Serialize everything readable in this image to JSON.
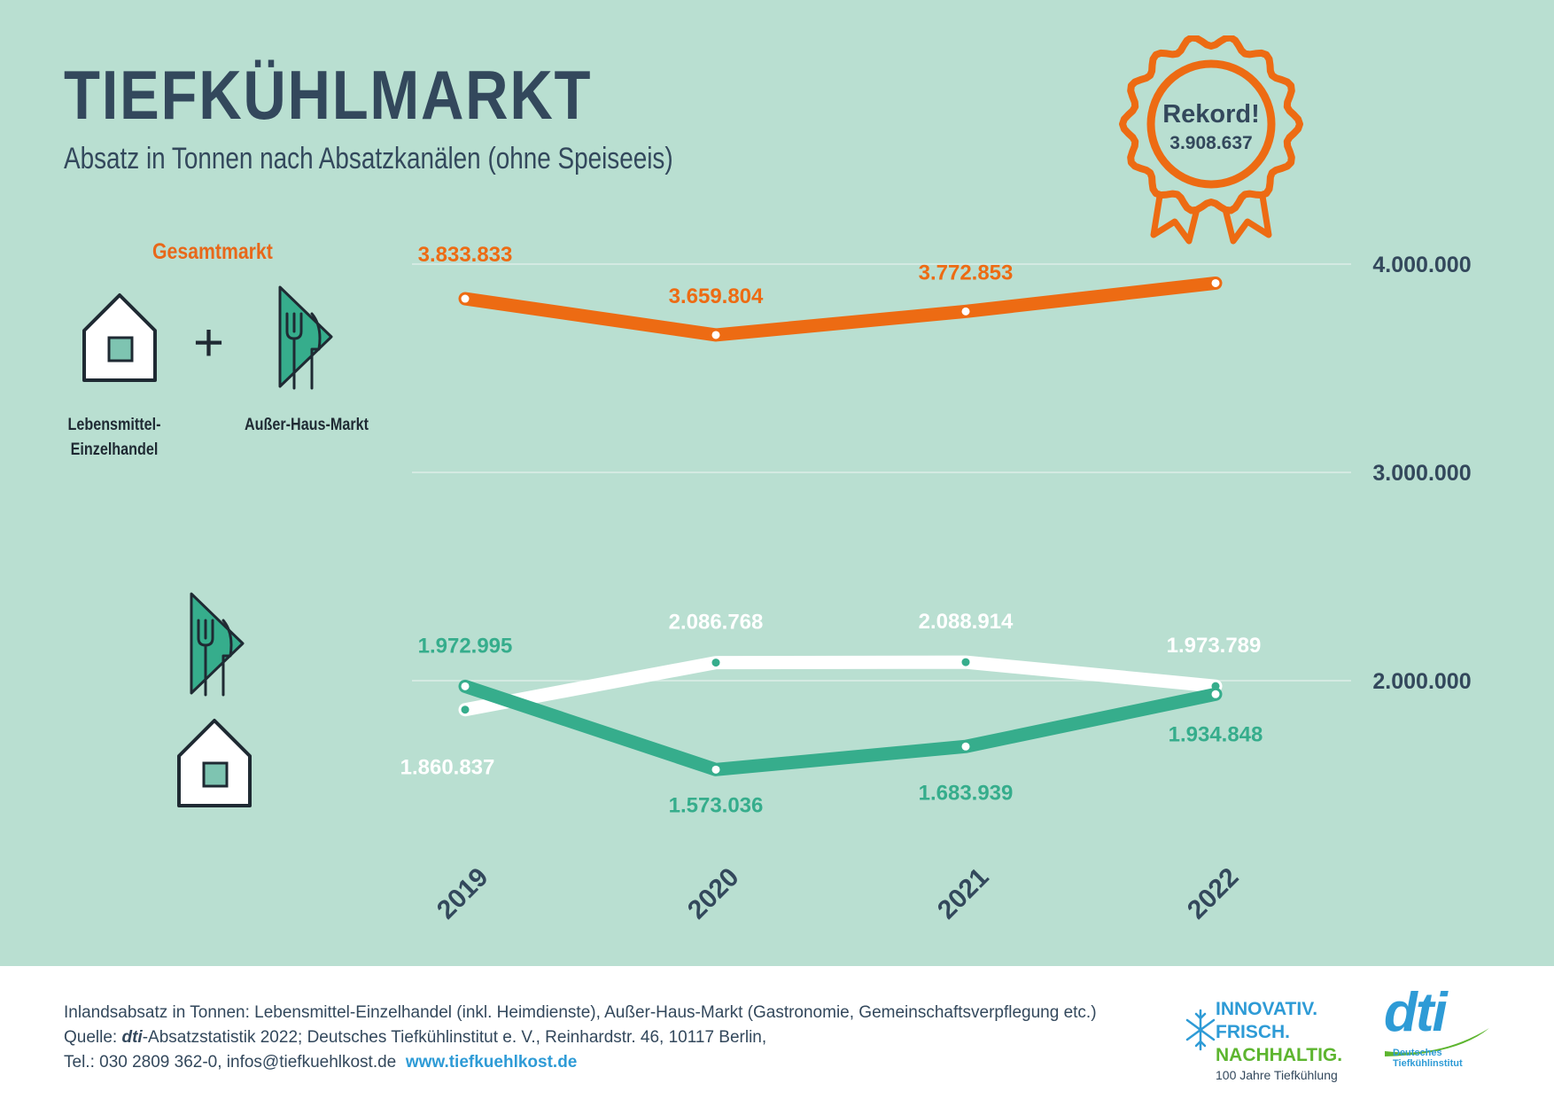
{
  "header": {
    "title": "TIEFKÜHLMARKT",
    "subtitle": "Absatz in Tonnen nach Absatzkanälen (ohne Speiseeis)"
  },
  "legend": {
    "title": "Gesamtmarkt",
    "retail_label_line1": "Lebensmittel-",
    "retail_label_line2": "Einzelhandel",
    "foodservice_label": "Außer-Haus-Markt",
    "plus": "+"
  },
  "badge": {
    "title": "Rekord!",
    "value": "3.908.637"
  },
  "chart_data": {
    "type": "line",
    "categories": [
      "2019",
      "2020",
      "2021",
      "2022"
    ],
    "yticks": [
      "2.000.000",
      "3.000.000",
      "4.000.000"
    ],
    "series": [
      {
        "values": [
          3833833,
          3659804,
          3772853,
          3908637
        ],
        "labels": [
          "3.833.833",
          "3.659.804",
          "3.772.853",
          ""
        ],
        "color": "#ed6b13"
      },
      {
        "values": [
          1860837,
          2086768,
          2088914,
          1973789
        ],
        "labels": [
          "1.860.837",
          "2.086.768",
          "2.088.914",
          "1.973.789"
        ],
        "color": "#ffffff"
      },
      {
        "values": [
          1972995,
          1573036,
          1683939,
          1934848
        ],
        "labels": [
          "1.972.995",
          "1.573.036",
          "1.683.939",
          "1.934.848"
        ],
        "color": "#36ad8c"
      }
    ]
  },
  "footer": {
    "line1": "Inlandsabsatz in Tonnen: Lebensmittel-Einzelhandel (inkl. Heimdienste), Außer-Haus-Markt (Gastronomie, Gemeinschaftsverpflegung etc.)",
    "line2_prefix": "Quelle: ",
    "line2_brand": "dti",
    "line2_rest": "-Absatzstatistik 2022; Deutsches Tiefkühlinstitut e. V., Reinhardstr. 46, 10117 Berlin,",
    "line3": "Tel.: 030 2809 362-0, infos@tiefkuehlkost.de",
    "link": "www.tiefkuehlkost.de"
  },
  "logos": {
    "slogan1": "INNOVATIV.",
    "slogan2": "FRISCH.",
    "slogan3": "NACHHALTIG.",
    "slogan4": "100 Jahre Tiefkühlung",
    "dti": "dti",
    "dti_sub1": "Deutsches",
    "dti_sub2": "Tiefkühlinstitut"
  }
}
